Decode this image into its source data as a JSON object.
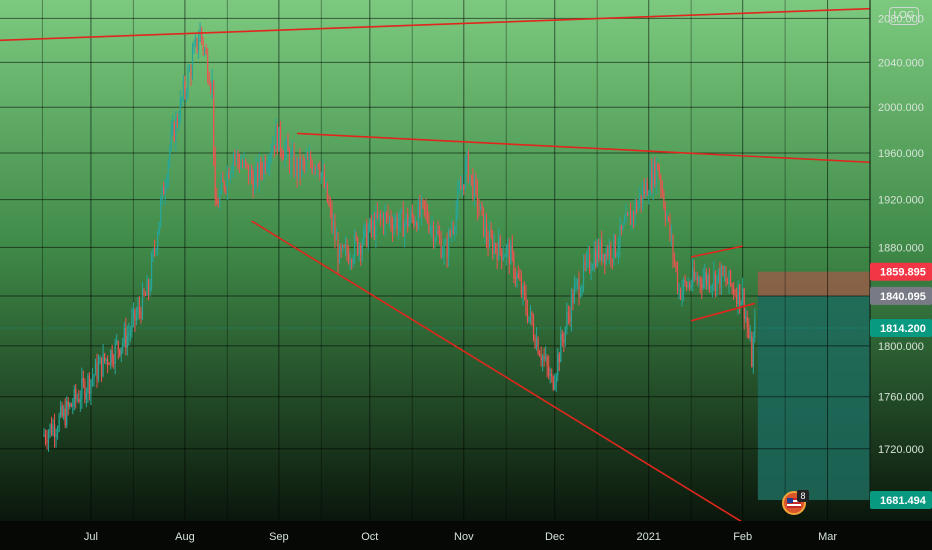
{
  "ui": {
    "scale_toggle_label": "LOG",
    "badge_label": "8"
  },
  "colors": {
    "bg_top": "#7cc97f",
    "bg_bottom": "#050a05",
    "grid": "#000000",
    "trendline": "#e0261d",
    "candle_up": "#26a69a",
    "candle_down": "#ef5350",
    "tag_red": "#f23645",
    "tag_gray": "#787b86",
    "tag_teal": "#089981",
    "position_target": "#1d6b5d",
    "position_stop": "#a35b4a"
  },
  "chart_data": {
    "type": "candlestick",
    "x_axis_labels": [
      "Jul",
      "Aug",
      "Sep",
      "Oct",
      "Nov",
      "Dec",
      "2021",
      "Feb",
      "Mar"
    ],
    "y_ticks": [
      1720.0,
      1760.0,
      1800.0,
      1840.0,
      1880.0,
      1920.0,
      1960.0,
      2000.0,
      2040.0,
      2080.0
    ],
    "ylim": [
      1666,
      2097
    ],
    "scale": "log",
    "grid": true,
    "price_tags": [
      {
        "label": "1859.895",
        "value": 1859.895,
        "color": "tag_red"
      },
      {
        "label": "1840.095",
        "value": 1840.095,
        "color": "tag_gray"
      },
      {
        "label": "1814.200",
        "value": 1814.2,
        "color": "tag_teal"
      },
      {
        "label": "1681.494",
        "value": 1681.494,
        "color": "tag_teal"
      }
    ],
    "close_series": [
      {
        "date": "2020-06-15",
        "close": 1730
      },
      {
        "date": "2020-06-22",
        "close": 1745
      },
      {
        "date": "2020-06-29",
        "close": 1768
      },
      {
        "date": "2020-07-06",
        "close": 1790
      },
      {
        "date": "2020-07-13",
        "close": 1808
      },
      {
        "date": "2020-07-20",
        "close": 1845
      },
      {
        "date": "2020-07-27",
        "close": 1965
      },
      {
        "date": "2020-08-06",
        "close": 2068
      },
      {
        "date": "2020-08-10",
        "close": 2020
      },
      {
        "date": "2020-08-11",
        "close": 1910
      },
      {
        "date": "2020-08-17",
        "close": 1960
      },
      {
        "date": "2020-08-24",
        "close": 1935
      },
      {
        "date": "2020-08-31",
        "close": 1975
      },
      {
        "date": "2020-09-07",
        "close": 1945
      },
      {
        "date": "2020-09-14",
        "close": 1955
      },
      {
        "date": "2020-09-21",
        "close": 1870
      },
      {
        "date": "2020-09-28",
        "close": 1885
      },
      {
        "date": "2020-10-05",
        "close": 1905
      },
      {
        "date": "2020-10-12",
        "close": 1900
      },
      {
        "date": "2020-10-19",
        "close": 1910
      },
      {
        "date": "2020-10-26",
        "close": 1875
      },
      {
        "date": "2020-11-02",
        "close": 1950
      },
      {
        "date": "2020-11-09",
        "close": 1885
      },
      {
        "date": "2020-11-16",
        "close": 1875
      },
      {
        "date": "2020-11-23",
        "close": 1820
      },
      {
        "date": "2020-11-30",
        "close": 1770
      },
      {
        "date": "2020-12-07",
        "close": 1840
      },
      {
        "date": "2020-12-14",
        "close": 1875
      },
      {
        "date": "2020-12-21",
        "close": 1880
      },
      {
        "date": "2021-01-04",
        "close": 1950
      },
      {
        "date": "2021-01-06",
        "close": 1920
      },
      {
        "date": "2021-01-11",
        "close": 1845
      },
      {
        "date": "2021-01-18",
        "close": 1855
      },
      {
        "date": "2021-01-25",
        "close": 1855
      },
      {
        "date": "2021-02-01",
        "close": 1840
      },
      {
        "date": "2021-02-04",
        "close": 1790
      },
      {
        "date": "2021-02-05",
        "close": 1814
      }
    ],
    "trendlines": [
      {
        "from": {
          "date": "2020-06-01",
          "value": 2060
        },
        "to": {
          "date": "2021-03-15",
          "value": 2089
        }
      },
      {
        "from": {
          "date": "2020-09-07",
          "value": 1977
        },
        "to": {
          "date": "2021-03-15",
          "value": 1952
        }
      },
      {
        "from": {
          "date": "2020-08-23",
          "value": 1902
        },
        "to": {
          "date": "2021-02-01",
          "value": 1665
        }
      },
      {
        "from": {
          "date": "2021-01-15",
          "value": 1872
        },
        "to": {
          "date": "2021-02-01",
          "value": 1881
        }
      },
      {
        "from": {
          "date": "2021-01-15",
          "value": 1820
        },
        "to": {
          "date": "2021-02-05",
          "value": 1834
        }
      }
    ],
    "position_tool": {
      "start": "2021-02-06",
      "end": "2021-03-15",
      "entry": 1840.095,
      "stop": 1859.895,
      "target": 1681.494
    }
  }
}
